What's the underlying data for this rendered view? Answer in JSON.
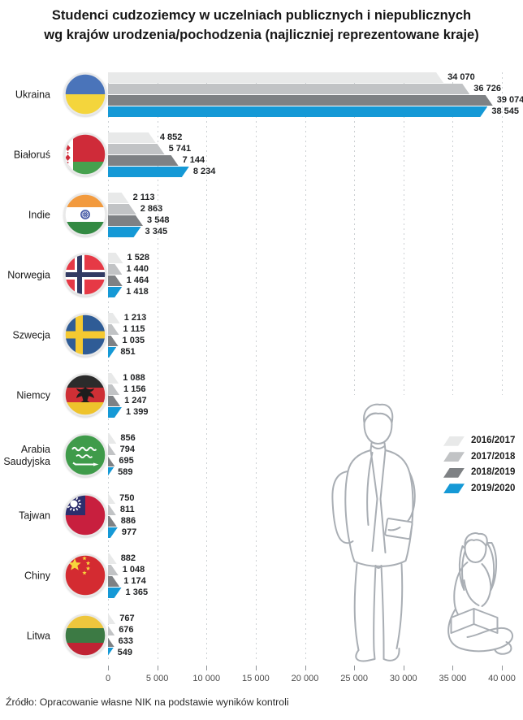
{
  "title": {
    "line1": "Studenci cudzoziemcy w uczelniach publicznych i niepublicznych",
    "line2": "wg krajów urodzenia/pochodzenia (najliczniej reprezentowane kraje)"
  },
  "source": "Źródło: Opracowanie własne NIK na podstawie wyników kontroli",
  "chart_data": {
    "type": "bar",
    "orientation": "horizontal",
    "title": "Studenci cudzoziemcy w uczelniach publicznych i niepublicznych wg krajów urodzenia/pochodzenia (najliczniej reprezentowane kraje)",
    "categories": [
      "Ukraina",
      "Białoruś",
      "Indie",
      "Norwegia",
      "Szwecja",
      "Niemcy",
      "Arabia Saudyjska",
      "Tajwan",
      "Chiny",
      "Litwa"
    ],
    "category_flags": [
      "ukraine",
      "belarus",
      "india",
      "norway",
      "sweden",
      "germany",
      "saudi-arabia",
      "taiwan",
      "china",
      "lithuania"
    ],
    "series": [
      {
        "name": "2016/2017",
        "color": "#e8e9e9",
        "values": [
          34070,
          4852,
          2113,
          1528,
          1213,
          1088,
          856,
          750,
          882,
          767
        ]
      },
      {
        "name": "2017/2018",
        "color": "#c1c3c5",
        "values": [
          36726,
          5741,
          2863,
          1440,
          1115,
          1156,
          794,
          811,
          1048,
          676
        ]
      },
      {
        "name": "2018/2019",
        "color": "#7e8184",
        "values": [
          39074,
          7144,
          3548,
          1464,
          1035,
          1247,
          695,
          886,
          1174,
          633
        ]
      },
      {
        "name": "2019/2020",
        "color": "#1599d6",
        "values": [
          38545,
          8234,
          3345,
          1418,
          851,
          1399,
          589,
          977,
          1365,
          549
        ]
      }
    ],
    "xlim": [
      0,
      40000
    ],
    "x_ticks": [
      0,
      5000,
      10000,
      15000,
      20000,
      25000,
      30000,
      35000,
      40000
    ],
    "x_tick_labels": [
      "0",
      "5 000",
      "10 000",
      "15 000",
      "20 000",
      "25 000",
      "30 000",
      "35 000",
      "40 000"
    ],
    "grid": "vertical-dashed",
    "legend_position": "middle-right",
    "value_labels": "outside-end",
    "xlabel": "",
    "ylabel": ""
  },
  "illustrations": {
    "standing": "standing-student-with-backpack",
    "sitting": "sitting-student-reading"
  }
}
